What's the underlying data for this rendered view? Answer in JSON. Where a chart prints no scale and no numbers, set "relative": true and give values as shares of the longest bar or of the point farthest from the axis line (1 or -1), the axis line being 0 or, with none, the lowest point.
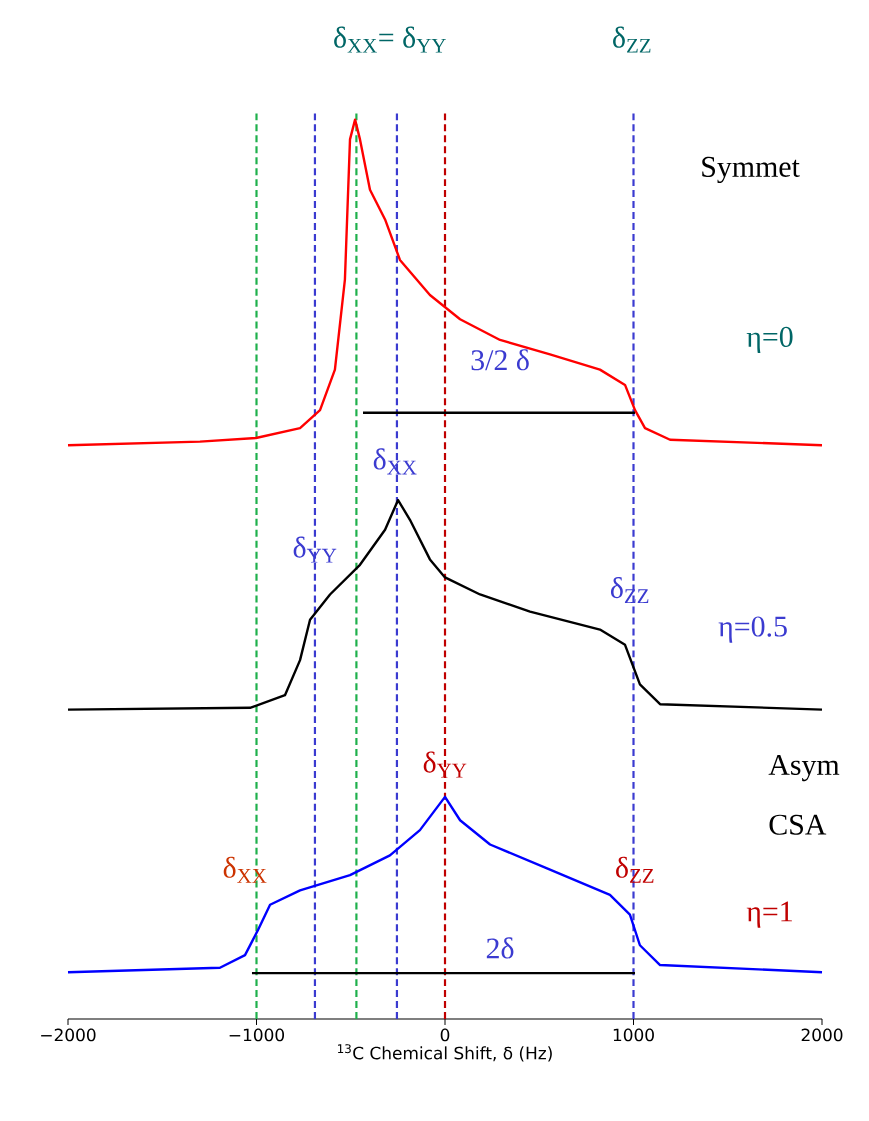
{
  "chart_data": {
    "type": "line",
    "relative": true,
    "xlabel": "$^{13}$C Chemical Shift, δ (Hz)",
    "xlim": [
      -2000,
      2000
    ],
    "xticks": [
      {
        "value": -2000,
        "label": "−2000"
      },
      {
        "value": -1000,
        "label": "−1000"
      },
      0,
      1000,
      2000
    ],
    "tick_labels": "x",
    "series": [
      {
        "color": "#ff0000",
        "x": [
          -2000,
          -1300,
          -1003,
          -769,
          -663,
          -584,
          -531,
          -504,
          -477,
          -451,
          -398,
          -318,
          -239,
          -80,
          80,
          292,
          557,
          822,
          955,
          1008,
          1061,
          1194,
          2000
        ],
        "values": [
          0.638,
          0.642,
          0.646,
          0.657,
          0.677,
          0.722,
          0.822,
          0.978,
          1.0,
          0.978,
          0.922,
          0.889,
          0.844,
          0.805,
          0.778,
          0.755,
          0.739,
          0.722,
          0.705,
          0.677,
          0.657,
          0.644,
          0.638
        ]
      },
      {
        "color": "#000000",
        "x": [
          -2000,
          -1034,
          -849,
          -769,
          -716,
          -610,
          -451,
          -318,
          -249,
          -186,
          -80,
          0,
          186,
          451,
          822,
          955,
          1034,
          1141,
          2000
        ],
        "values": [
          0.344,
          0.346,
          0.36,
          0.399,
          0.444,
          0.472,
          0.505,
          0.544,
          0.577,
          0.555,
          0.511,
          0.491,
          0.472,
          0.453,
          0.433,
          0.416,
          0.372,
          0.35,
          0.344
        ]
      },
      {
        "color": "#0000ff",
        "x": [
          -2000,
          -1194,
          -1061,
          -992,
          -928,
          -769,
          -504,
          -292,
          -133,
          0,
          80,
          239,
          557,
          875,
          981,
          1034,
          1141,
          2000
        ],
        "values": [
          0.052,
          0.057,
          0.071,
          0.099,
          0.127,
          0.143,
          0.16,
          0.182,
          0.21,
          0.247,
          0.221,
          0.194,
          0.166,
          0.138,
          0.116,
          0.082,
          0.06,
          0.052
        ]
      },
      {
        "color": "#000000",
        "x": [
          -435,
          1008
        ],
        "values": [
          0.674,
          0.674
        ]
      },
      {
        "color": "#000000",
        "x": [
          -1024,
          1008
        ],
        "values": [
          0.051,
          0.051
        ]
      }
    ],
    "ref_lines": [
      {
        "axis": "x",
        "value": -1000,
        "color": "#1fb04c",
        "line_style": "dashed"
      },
      {
        "axis": "x",
        "value": -470,
        "color": "#1fb04c",
        "line_style": "dashed"
      },
      {
        "axis": "x",
        "value": -690,
        "color": "#3b3bd0",
        "line_style": "dashed"
      },
      {
        "axis": "x",
        "value": -255,
        "color": "#3b3bd0",
        "line_style": "dashed"
      },
      {
        "axis": "x",
        "value": 1000,
        "color": "#3b3bd0",
        "line_style": "dashed"
      },
      {
        "axis": "x",
        "value": 0,
        "color": "#c00000",
        "line_style": "dashed"
      }
    ],
    "annotations": [
      "δ$_{XX}$= δ$_{YY}$",
      "δ$_{ZZ}$",
      "Symmet",
      "η=0",
      "3/2 δ",
      {
        "text": "δ$_{XX}$",
        "x": -265,
        "y": 0.62
      },
      {
        "text": "δ$_{YY}$",
        "x": -690,
        "y": 0.522
      },
      {
        "text": "δ$_{ZZ}$",
        "x": 981,
        "y": 0.477
      },
      "η=0.5",
      {
        "text": "δ$_{YY}$",
        "x": 0,
        "y": 0.283
      },
      "Asym",
      "CSA",
      "δ$_{XX}$",
      {
        "text": "δ$_{ZZ}$",
        "x": 1008,
        "y": 0.166
      },
      "η=1",
      "2δ"
    ]
  }
}
